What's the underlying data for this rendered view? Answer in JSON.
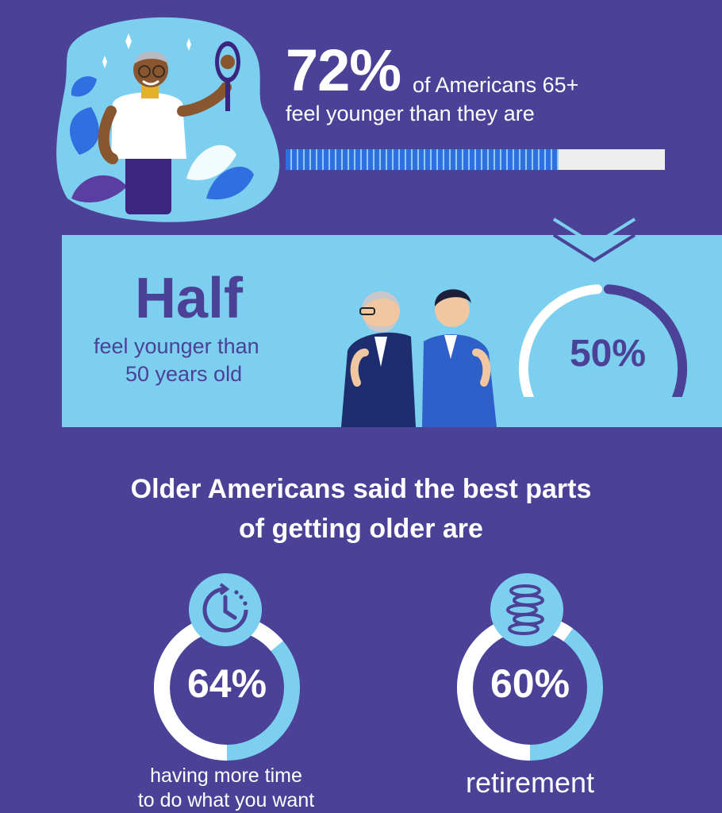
{
  "colors": {
    "background": "#4b4196",
    "band": "#7ccfef",
    "accent_dark": "#4b4196",
    "accent_light": "#7ccfef",
    "white": "#ffffff"
  },
  "stat_top": {
    "value": "72%",
    "line1": "of Americans 65+",
    "line2": "feel younger than they are"
  },
  "stat_half": {
    "word": "Half",
    "line1": "feel younger than",
    "line2": "50 years old",
    "gauge_label": "50%"
  },
  "headline": {
    "line1": "Older Americans said the best parts",
    "line2": "of getting older are"
  },
  "items": [
    {
      "value": "64%",
      "caption_line1": "having more time",
      "caption_line2": "to do what you want",
      "icon": "clock-icon"
    },
    {
      "value": "60%",
      "caption_line1": "retirement",
      "caption_line2": "",
      "icon": "coins-icon"
    }
  ],
  "chart_data": [
    {
      "type": "bar",
      "categories": [
        "Americans 65+ who feel younger than they are"
      ],
      "values": [
        72
      ],
      "ylim": [
        0,
        100
      ]
    },
    {
      "type": "pie",
      "categories": [
        "feel younger than 50 years old"
      ],
      "values": [
        50
      ]
    },
    {
      "type": "pie",
      "categories": [
        "having more time to do what you want"
      ],
      "values": [
        64
      ]
    },
    {
      "type": "pie",
      "categories": [
        "retirement"
      ],
      "values": [
        60
      ]
    }
  ]
}
